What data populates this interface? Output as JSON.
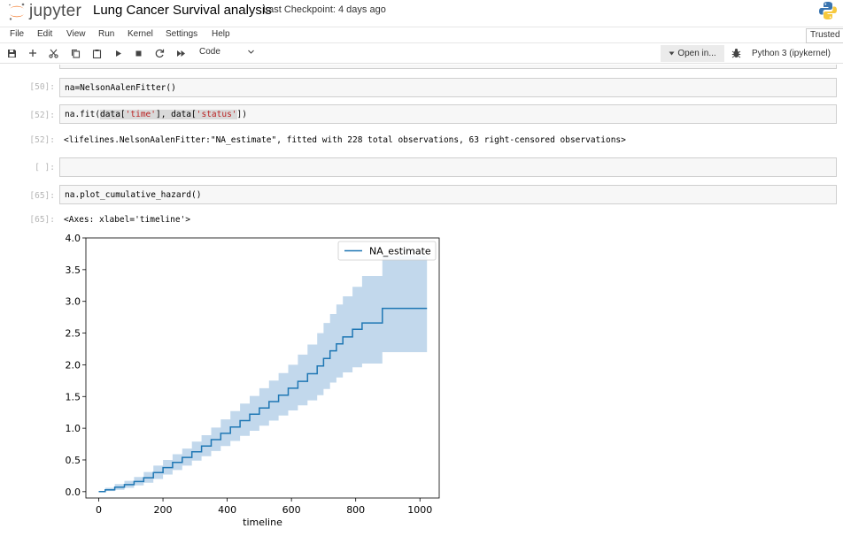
{
  "header": {
    "logo_text": "jupyter",
    "notebook_title": "Lung Cancer Survival analysis",
    "checkpoint": "Last Checkpoint: 4 days ago"
  },
  "menubar": {
    "items": [
      "File",
      "Edit",
      "View",
      "Run",
      "Kernel",
      "Settings",
      "Help"
    ],
    "trusted": "Trusted"
  },
  "toolbar": {
    "cell_type": "Code",
    "open_in": "Open in...",
    "kernel": "Python 3 (ipykernel)"
  },
  "cells": {
    "c1": {
      "prompt": "[50]:",
      "code": "na=NelsonAalenFitter()"
    },
    "c2": {
      "prompt": "[52]:",
      "code_pre": "na.fit(",
      "code_data1": "data[",
      "code_time": "'time'",
      "code_mid": "], data[",
      "code_status": "'status'",
      "code_end": "])"
    },
    "o2": {
      "prompt": "[52]:",
      "text": "<lifelines.NelsonAalenFitter:\"NA_estimate\", fitted with 228 total observations, 63 right-censored observations>"
    },
    "c3": {
      "prompt": "[ ]:",
      "code": ""
    },
    "c4": {
      "prompt": "[65]:",
      "code": "na.plot_cumulative_hazard()"
    },
    "o4": {
      "prompt": "[65]:",
      "text": "<Axes: xlabel='timeline'>"
    }
  },
  "chart_data": {
    "type": "line",
    "title": "",
    "xlabel": "timeline",
    "ylabel": "",
    "xlim": [
      -40,
      1060
    ],
    "ylim": [
      -0.1,
      4.0
    ],
    "xticks": [
      0,
      200,
      400,
      600,
      800,
      1000
    ],
    "xtick_labels": [
      "0",
      "200",
      "400",
      "600",
      "800",
      "1000"
    ],
    "yticks": [
      0.0,
      0.5,
      1.0,
      1.5,
      2.0,
      2.5,
      3.0,
      3.5,
      4.0
    ],
    "ytick_labels": [
      "0.0",
      "0.5",
      "1.0",
      "1.5",
      "2.0",
      "2.5",
      "3.0",
      "3.5",
      "4.0"
    ],
    "legend": {
      "location": "top-right",
      "entries": [
        "NA_estimate"
      ]
    },
    "colors": {
      "line": "#1f77b4",
      "band": "#aecbe5"
    },
    "series": [
      {
        "name": "NA_estimate",
        "x": [
          0,
          20,
          50,
          80,
          110,
          140,
          170,
          200,
          230,
          260,
          290,
          320,
          350,
          380,
          410,
          440,
          470,
          500,
          530,
          560,
          590,
          620,
          650,
          680,
          700,
          720,
          740,
          760,
          790,
          820,
          850,
          883,
          1022
        ],
        "y": [
          0.0,
          0.03,
          0.07,
          0.11,
          0.16,
          0.22,
          0.3,
          0.38,
          0.46,
          0.54,
          0.63,
          0.72,
          0.82,
          0.92,
          1.02,
          1.12,
          1.22,
          1.32,
          1.42,
          1.52,
          1.63,
          1.74,
          1.86,
          1.98,
          2.1,
          2.22,
          2.33,
          2.44,
          2.56,
          2.66,
          2.66,
          2.89,
          2.89
        ],
        "ci_lower": [
          0.0,
          0.01,
          0.03,
          0.06,
          0.1,
          0.14,
          0.2,
          0.27,
          0.34,
          0.41,
          0.49,
          0.56,
          0.64,
          0.72,
          0.8,
          0.88,
          0.96,
          1.04,
          1.12,
          1.2,
          1.28,
          1.36,
          1.44,
          1.52,
          1.62,
          1.72,
          1.8,
          1.88,
          1.96,
          2.02,
          2.02,
          2.2,
          2.2
        ],
        "ci_upper": [
          0.0,
          0.06,
          0.12,
          0.17,
          0.23,
          0.31,
          0.41,
          0.5,
          0.59,
          0.68,
          0.79,
          0.89,
          1.01,
          1.14,
          1.27,
          1.39,
          1.51,
          1.63,
          1.75,
          1.87,
          2.0,
          2.16,
          2.32,
          2.5,
          2.66,
          2.8,
          2.95,
          3.08,
          3.23,
          3.4,
          3.4,
          3.72,
          3.72
        ]
      }
    ]
  }
}
